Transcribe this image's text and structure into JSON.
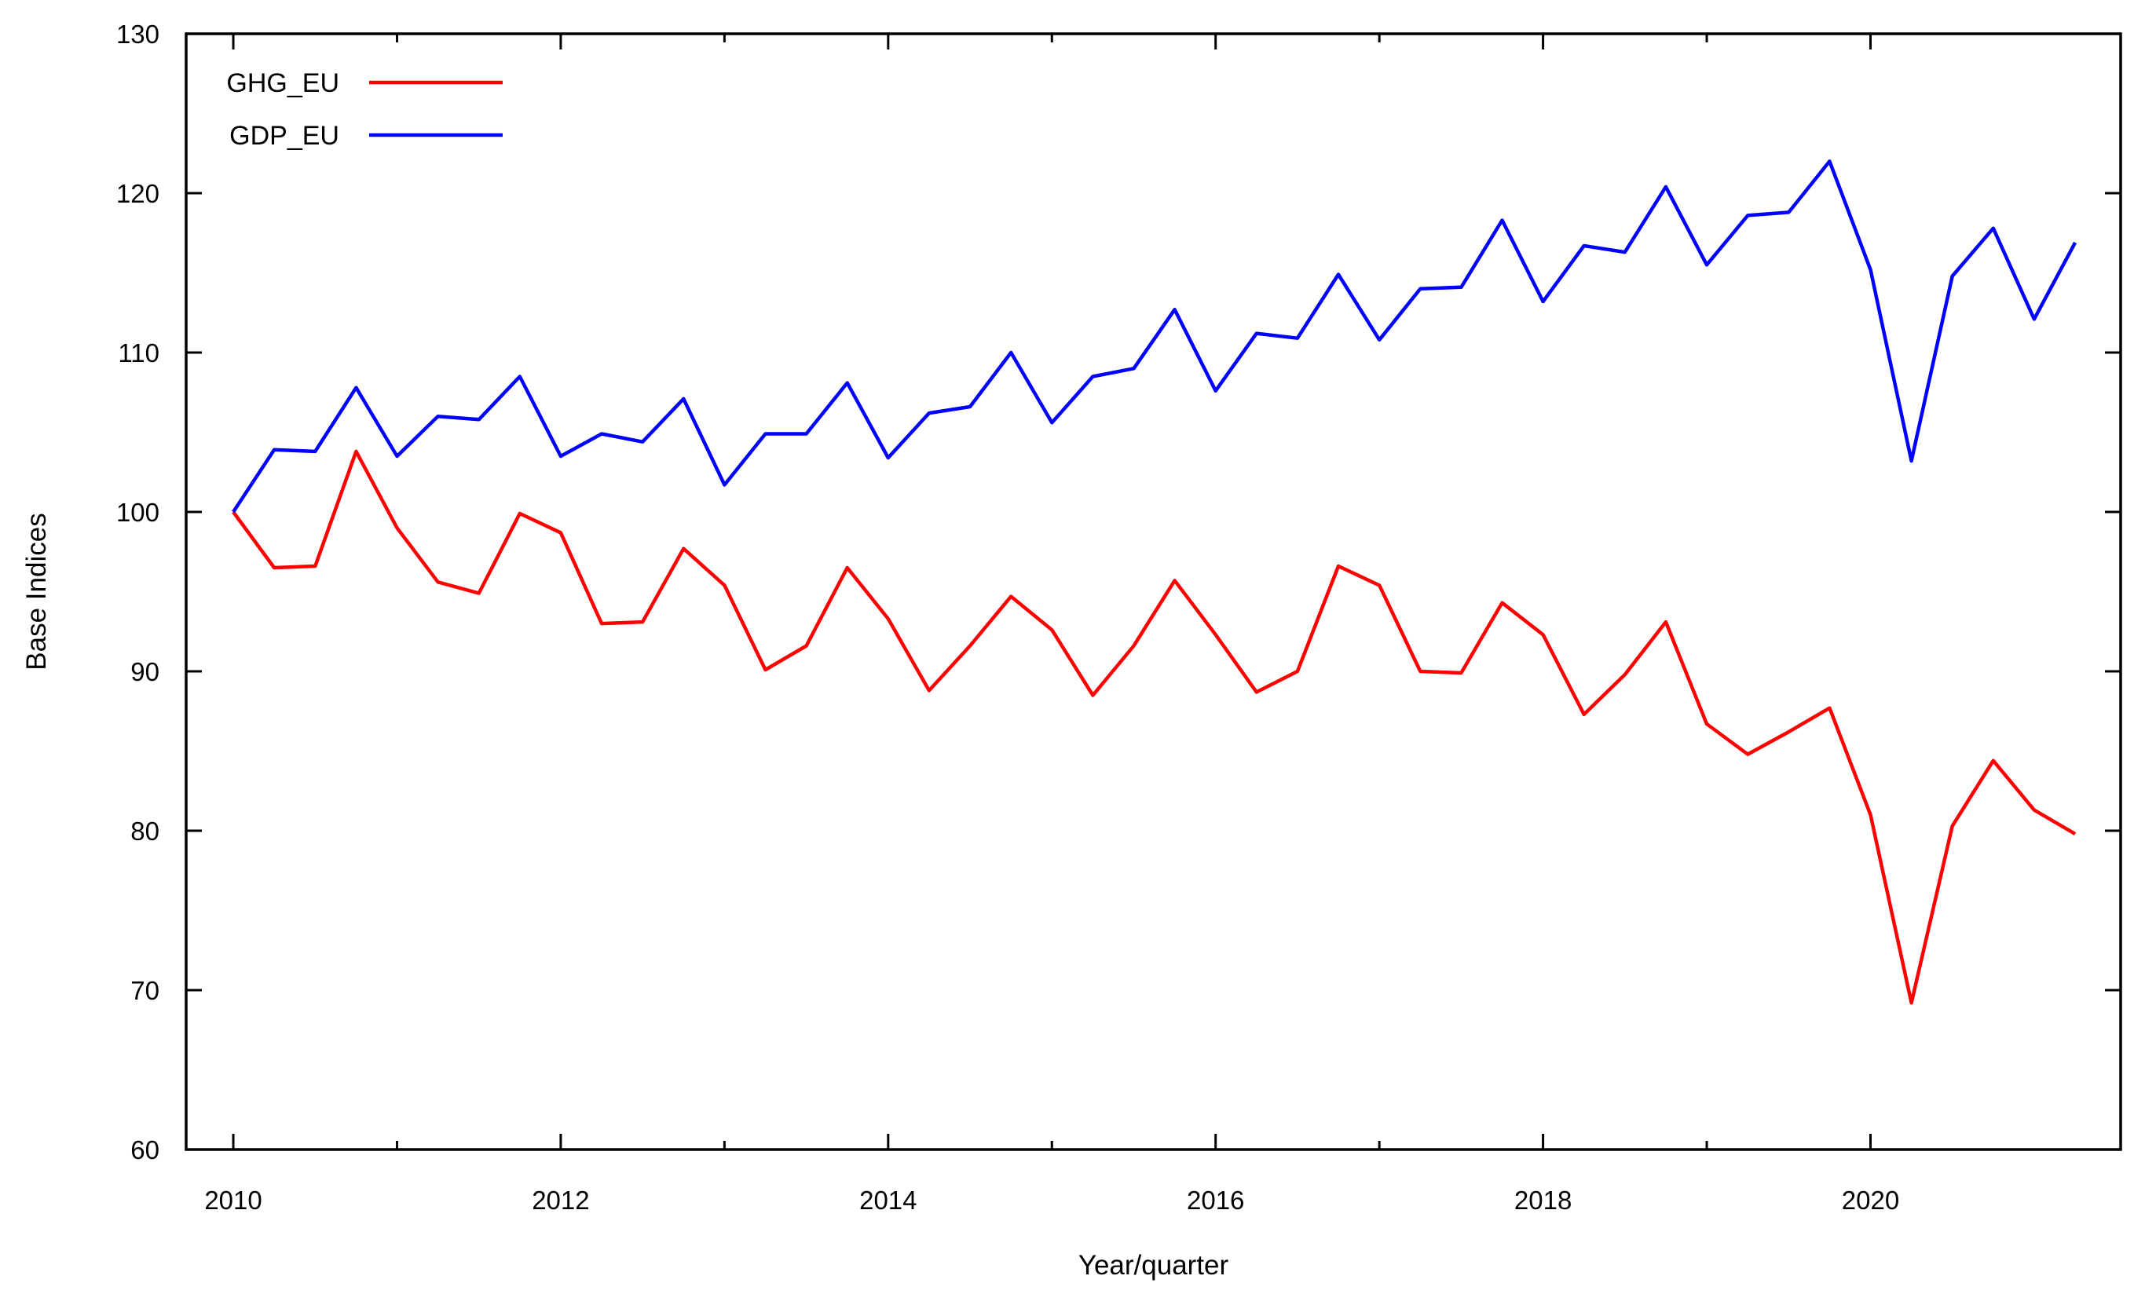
{
  "chart_data": {
    "type": "line",
    "title": "",
    "xlabel": "Year/quarter",
    "ylabel": "Base Indices",
    "background": "#ffffff",
    "axis_color": "#000000",
    "grid": false,
    "legend_position": "top-left",
    "xlim": [
      2009.712,
      2021.528
    ],
    "ylim": [
      60,
      130
    ],
    "y_ticks": [
      60,
      70,
      80,
      90,
      100,
      110,
      120,
      130
    ],
    "x_major_ticks": [
      2010,
      2012,
      2014,
      2016,
      2018,
      2020
    ],
    "x_minor_ticks": [
      2011,
      2013,
      2015,
      2017,
      2019
    ],
    "x_start": 2010.0,
    "x_step": 0.25,
    "series": [
      {
        "name": "GHG_EU",
        "color": "#ff0000",
        "values": [
          100.0,
          96.5,
          96.6,
          103.8,
          99.0,
          95.6,
          94.9,
          99.9,
          98.7,
          93.0,
          93.1,
          97.7,
          95.4,
          90.1,
          91.6,
          96.5,
          93.3,
          88.8,
          91.6,
          94.7,
          92.6,
          88.5,
          91.6,
          95.7,
          92.3,
          88.7,
          90.0,
          96.6,
          95.4,
          90.0,
          89.9,
          94.3,
          92.3,
          87.3,
          89.8,
          93.1,
          86.7,
          84.8,
          86.2,
          87.7,
          81.0,
          69.2,
          80.3,
          84.4,
          81.3,
          79.8
        ]
      },
      {
        "name": "GDP_EU",
        "color": "#0000ff",
        "values": [
          100.0,
          103.9,
          103.8,
          107.8,
          103.5,
          106.0,
          105.8,
          108.5,
          103.5,
          104.9,
          104.4,
          107.1,
          101.7,
          104.9,
          104.9,
          108.1,
          103.4,
          106.2,
          106.6,
          110.0,
          105.6,
          108.5,
          109.0,
          112.7,
          107.6,
          111.2,
          110.9,
          114.9,
          110.8,
          114.0,
          114.1,
          118.3,
          113.2,
          116.7,
          116.3,
          120.4,
          115.5,
          118.6,
          118.8,
          122.0,
          115.2,
          103.2,
          114.8,
          117.8,
          112.1,
          116.9
        ]
      }
    ]
  }
}
